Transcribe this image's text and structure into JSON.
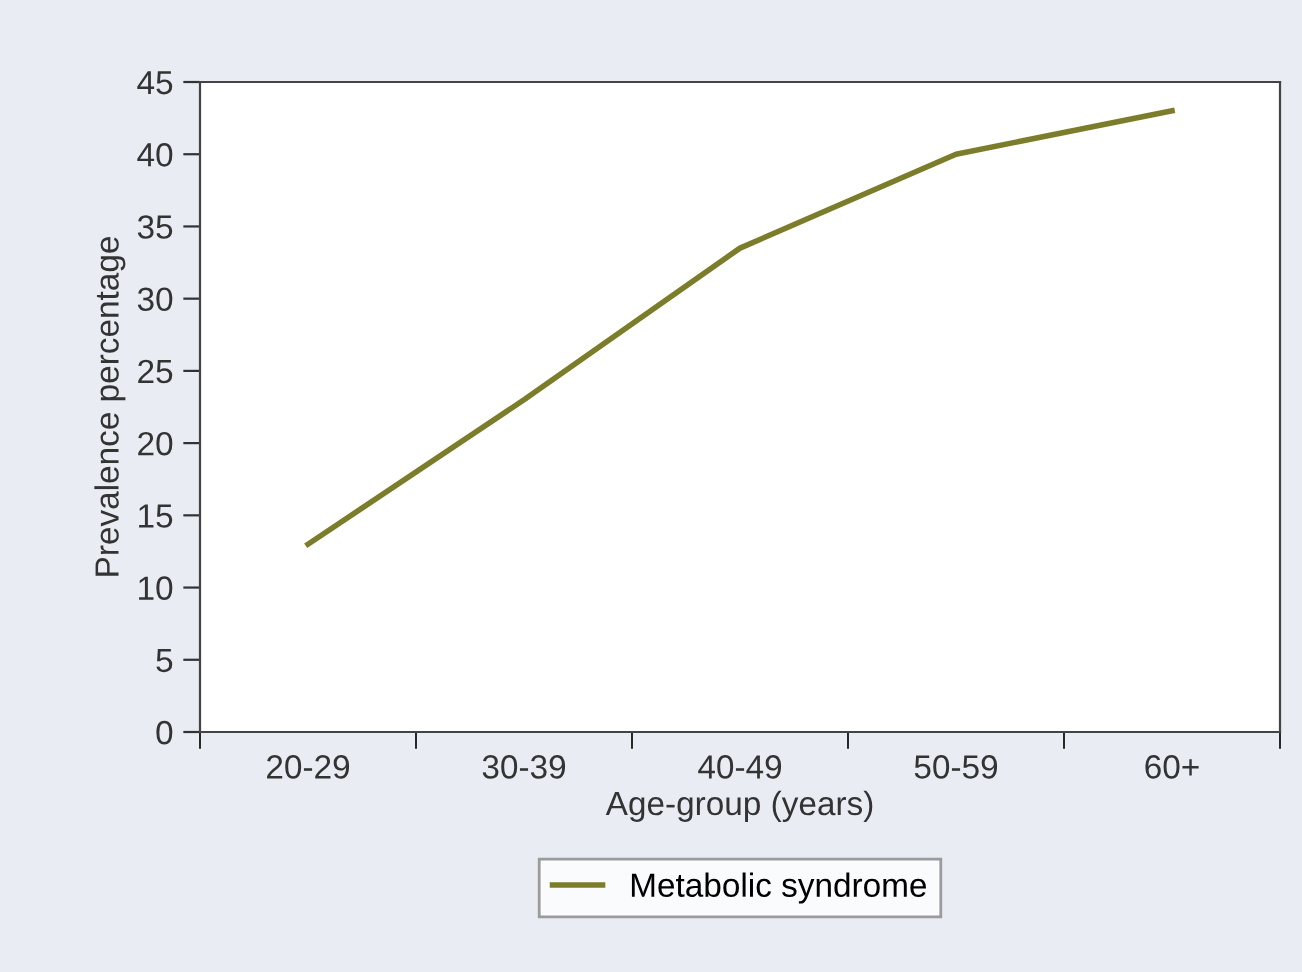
{
  "chart_data": {
    "type": "line",
    "xlabel": "Age-group (years)",
    "ylabel": "Prevalence percentage",
    "categories": [
      "20-29",
      "30-39",
      "40-49",
      "50-59",
      "60+"
    ],
    "series": [
      {
        "name": "Metabolic syndrome",
        "color": "#7b7d2a",
        "values": [
          13,
          23,
          33.5,
          40,
          43
        ]
      }
    ],
    "ylim": [
      0,
      45
    ],
    "yticks": [
      0,
      5,
      10,
      15,
      20,
      25,
      30,
      35,
      40,
      45
    ],
    "grid": false,
    "legend": "bottom",
    "marker": "none",
    "line_style": "solid"
  }
}
